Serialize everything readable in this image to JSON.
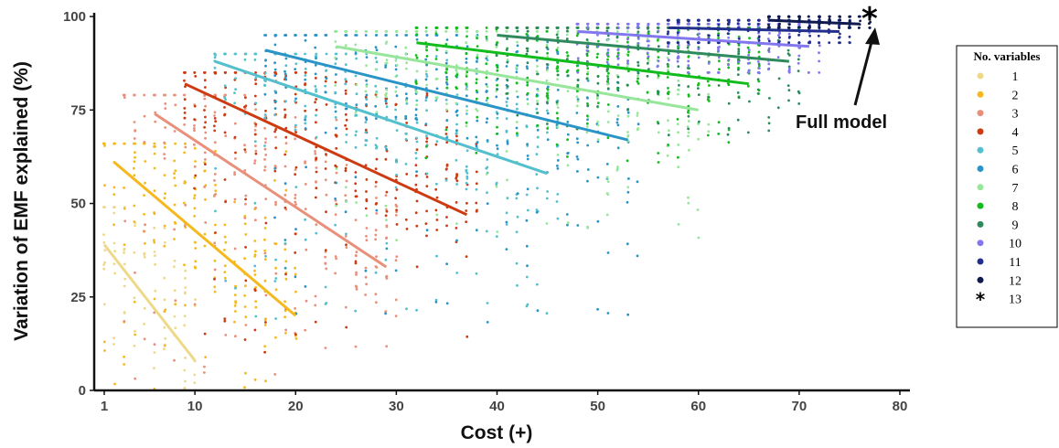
{
  "chart_data": {
    "type": "scatter",
    "title": "",
    "xlabel": "Cost (+)",
    "ylabel": "Variation of EMF explained (%)",
    "xlim": [
      0,
      81
    ],
    "ylim": [
      0,
      101
    ],
    "xticks": [
      1,
      10,
      20,
      30,
      40,
      50,
      60,
      70,
      80
    ],
    "yticks": [
      0,
      25,
      50,
      75,
      100
    ],
    "grid": false,
    "legend": {
      "title": "No. variables",
      "placement": "right"
    },
    "series": [
      {
        "name": "1",
        "color": "#EDD989",
        "line": {
          "x": [
            1,
            10
          ],
          "y": [
            39,
            8
          ]
        },
        "x_range": [
          1,
          10
        ],
        "y_range": [
          0,
          49
        ]
      },
      {
        "name": "2",
        "color": "#F5B81F",
        "line": {
          "x": [
            2,
            20
          ],
          "y": [
            61,
            20
          ]
        },
        "x_range": [
          1,
          20
        ],
        "y_range": [
          0,
          66
        ]
      },
      {
        "name": "3",
        "color": "#E8907A",
        "line": {
          "x": [
            6,
            29
          ],
          "y": [
            74,
            33
          ]
        },
        "x_range": [
          3,
          30
        ],
        "y_range": [
          3,
          79
        ]
      },
      {
        "name": "4",
        "color": "#CC3B12",
        "line": {
          "x": [
            9,
            37
          ],
          "y": [
            82,
            47
          ]
        },
        "x_range": [
          9,
          38
        ],
        "y_range": [
          10,
          85
        ]
      },
      {
        "name": "5",
        "color": "#54BFCD",
        "line": {
          "x": [
            12,
            45
          ],
          "y": [
            88,
            58
          ]
        },
        "x_range": [
          12,
          46
        ],
        "y_range": [
          18,
          90
        ]
      },
      {
        "name": "6",
        "color": "#2B94C6",
        "line": {
          "x": [
            17,
            53
          ],
          "y": [
            91,
            67
          ]
        },
        "x_range": [
          17,
          54
        ],
        "y_range": [
          18,
          95
        ]
      },
      {
        "name": "7",
        "color": "#97E69A",
        "line": {
          "x": [
            24,
            60
          ],
          "y": [
            92,
            75
          ]
        },
        "x_range": [
          24,
          61
        ],
        "y_range": [
          40,
          96
        ]
      },
      {
        "name": "8",
        "color": "#12BC1C",
        "line": {
          "x": [
            32,
            65
          ],
          "y": [
            93,
            82
          ]
        },
        "x_range": [
          32,
          66
        ],
        "y_range": [
          60,
          97
        ]
      },
      {
        "name": "9",
        "color": "#2E8A5C",
        "line": {
          "x": [
            40,
            69
          ],
          "y": [
            95,
            88
          ]
        },
        "x_range": [
          40,
          70
        ],
        "y_range": [
          68,
          97
        ]
      },
      {
        "name": "10",
        "color": "#8277EF",
        "line": {
          "x": [
            48,
            71
          ],
          "y": [
            96,
            92
          ]
        },
        "x_range": [
          48,
          72
        ],
        "y_range": [
          85,
          98
        ]
      },
      {
        "name": "11",
        "color": "#232F8C",
        "line": {
          "x": [
            57,
            74
          ],
          "y": [
            97,
            96
          ]
        },
        "x_range": [
          57,
          75
        ],
        "y_range": [
          93,
          99
        ]
      },
      {
        "name": "12",
        "color": "#0F1B4F",
        "line": {
          "x": [
            67,
            76
          ],
          "y": [
            99,
            98
          ]
        },
        "x_range": [
          67,
          77
        ],
        "y_range": [
          97,
          100
        ]
      },
      {
        "name": "13",
        "color": "#000000",
        "marker": "asterisk",
        "point": {
          "x": 77,
          "y": 100
        }
      }
    ],
    "annotations": [
      {
        "text": "Full model",
        "target": {
          "x": 77,
          "y": 100
        }
      }
    ]
  }
}
